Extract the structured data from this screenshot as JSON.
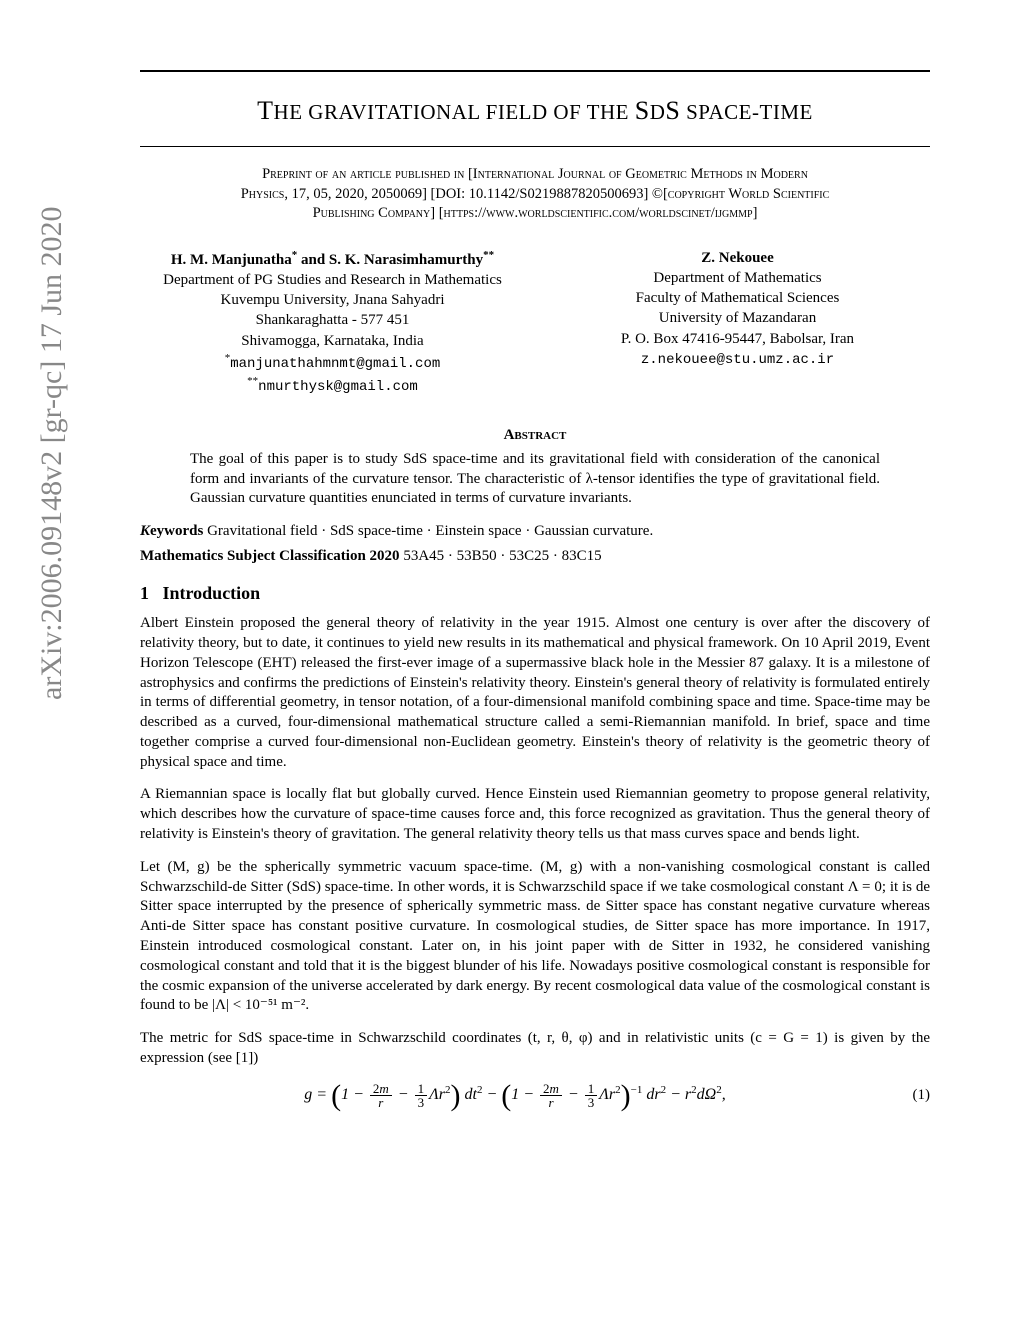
{
  "arxiv_stamp": "arXiv:2006.09148v2  [gr-qc]  17 Jun 2020",
  "title_pre": "T",
  "title_rest": "HE GRAVITATIONAL FIELD OF THE ",
  "title_sds": "SDS",
  "title_tail": " SPACE-TIME",
  "pubnote_l1": "Preprint of an article published in [International Journal of Geometric Methods in Modern",
  "pubnote_l2": "Physics, 17, 05, 2020, 2050069] [DOI: 10.1142/S0219887820500693] ©[copyright World Scientific",
  "pubnote_l3": "Publishing Company] [https://www.worldscientific.com/worldscinet/ijgmmp]",
  "authors": {
    "left": {
      "names": "H. M. Manjunatha* and S. K. Narasimhamurthy**",
      "lines": [
        "Department of PG Studies and Research in Mathematics",
        "Kuvempu University, Jnana Sahyadri",
        "Shankaraghatta - 577 451",
        "Shivamogga, Karnataka, India"
      ],
      "email1_pre": "*",
      "email1": "manjunathahmnmt@gmail.com",
      "email2_pre": "**",
      "email2": "nmurthysk@gmail.com"
    },
    "right": {
      "names": "Z. Nekouee",
      "lines": [
        "Department of Mathematics",
        "Faculty of Mathematical Sciences",
        "University of Mazandaran",
        "P. O. Box 47416-95447, Babolsar, Iran"
      ],
      "email1_pre": "",
      "email1": "z.nekouee@stu.umz.ac.ir"
    }
  },
  "abstract_head": "Abstract",
  "abstract_body": "The goal of this paper is to study SdS space-time and its gravitational field with consideration of the canonical form and invariants of the curvature tensor. The characteristic of λ-tensor identifies the type of gravitational field. Gaussian curvature quantities enunciated in terms of curvature invariants.",
  "keywords_label": "Keywords",
  "keywords_text": " Gravitational field · SdS space-time · Einstein space · Gaussian curvature.",
  "msc_label": "Mathematics Subject Classification 2020",
  "msc_text": " 53A45 · 53B50 · 53C25 · 83C15",
  "sec1_num": "1",
  "sec1_title": "Introduction",
  "para1": "Albert Einstein proposed the general theory of relativity in the year 1915. Almost one century is over after the discovery of relativity theory, but to date, it continues to yield new results in its mathematical and physical framework. On 10 April 2019, Event Horizon Telescope (EHT) released the first-ever image of a supermassive black hole in the Messier 87 galaxy. It is a milestone of astrophysics and confirms the predictions of Einstein's relativity theory. Einstein's general theory of relativity is formulated entirely in terms of differential geometry, in tensor notation, of a four-dimensional manifold combining space and time. Space-time may be described as a curved, four-dimensional mathematical structure called a semi-Riemannian manifold. In brief, space and time together comprise a curved four-dimensional non-Euclidean geometry. Einstein's theory of relativity is the geometric theory of physical space and time.",
  "para2": "A Riemannian space is locally flat but globally curved. Hence Einstein used Riemannian geometry to propose general relativity, which describes how the curvature of space-time causes force and, this force recognized as gravitation. Thus the general theory of relativity is Einstein's theory of gravitation. The general relativity theory tells us that mass curves space and bends light.",
  "para3": "Let (M, g) be the spherically symmetric vacuum space-time. (M, g) with a non-vanishing cosmological constant is called Schwarzschild-de Sitter (SdS) space-time. In other words, it is Schwarzschild space if we take cosmological constant Λ = 0; it is de Sitter space interrupted by the presence of spherically symmetric mass. de Sitter space has constant negative curvature whereas Anti-de Sitter space has constant positive curvature. In cosmological studies, de Sitter space has more importance. In 1917, Einstein introduced cosmological constant. Later on, in his joint paper with de Sitter in 1932, he considered vanishing cosmological constant and told that it is the biggest blunder of his life. Nowadays positive cosmological constant is responsible for the cosmic expansion of the universe accelerated by dark energy. By recent cosmological data value of the cosmological constant is found to be |Λ| < 10⁻⁵¹ m⁻².",
  "para4": "The metric for SdS space-time in Schwarzschild coordinates (t, r, θ, φ) and in relativistic units (c = G = 1) is given by the expression (see [1])",
  "eq1_num": "(1)"
}
